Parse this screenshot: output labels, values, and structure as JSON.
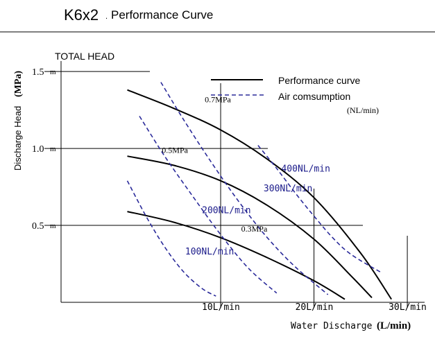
{
  "header": {
    "model": "K6x2",
    "subtitle": "Performance Curve"
  },
  "chart_data": {
    "type": "line",
    "title": "K6x2 Performance Curve",
    "xlabel": "Water Discharge",
    "xlabel_unit": "(L/min)",
    "ylabel": "Discharge Head",
    "ylabel_unit": "(MPa)",
    "y_group_label": "TOTAL HEAD",
    "xlim": [
      -7.1,
      32
    ],
    "ylim": [
      0,
      1.55
    ],
    "x_ticks": [
      {
        "value": 10,
        "label": "10L/min"
      },
      {
        "value": 20,
        "label": "20L/min"
      },
      {
        "value": 30,
        "label": "30L/min"
      }
    ],
    "y_ticks": [
      {
        "value": 0.5,
        "label": "0.5",
        "unit": "m"
      },
      {
        "value": 1.0,
        "label": "1.0",
        "unit": "m"
      },
      {
        "value": 1.5,
        "label": "1.5",
        "unit": "m"
      }
    ],
    "legend": {
      "position": "top-right",
      "items": [
        {
          "label": "Performance curve",
          "style": "solid",
          "color": "#000000"
        },
        {
          "label": "Air comsumption",
          "style": "dashed",
          "color": "#2a2a9a"
        }
      ],
      "note": "(NL/min)"
    },
    "series": [
      {
        "name": "0.7MPa",
        "style": "solid",
        "color": "#000000",
        "x": [
          0,
          5,
          10,
          15,
          20,
          25,
          28.3
        ],
        "y": [
          1.38,
          1.26,
          1.12,
          0.93,
          0.68,
          0.32,
          0.02
        ]
      },
      {
        "name": "0.5MPa",
        "style": "solid",
        "color": "#000000",
        "x": [
          0,
          5,
          10,
          15,
          20,
          24,
          26.2
        ],
        "y": [
          0.95,
          0.89,
          0.79,
          0.63,
          0.41,
          0.17,
          0.03
        ]
      },
      {
        "name": "0.3MPa",
        "style": "solid",
        "color": "#000000",
        "x": [
          0,
          5,
          10,
          15,
          20,
          23.3
        ],
        "y": [
          0.59,
          0.52,
          0.42,
          0.29,
          0.14,
          0.02
        ]
      },
      {
        "name": "100NL/min",
        "style": "dashed",
        "color": "#2a2a9a",
        "x": [
          0,
          2,
          4,
          6,
          8,
          9.5
        ],
        "y": [
          0.79,
          0.56,
          0.36,
          0.2,
          0.09,
          0.04
        ]
      },
      {
        "name": "200NL/min",
        "style": "dashed",
        "color": "#2a2a9a",
        "x": [
          1.3,
          4,
          7,
          10,
          13,
          16
        ],
        "y": [
          1.21,
          0.95,
          0.69,
          0.44,
          0.22,
          0.06
        ]
      },
      {
        "name": "300NL/min",
        "style": "dashed",
        "color": "#2a2a9a",
        "x": [
          3.6,
          6,
          9,
          12,
          15,
          18,
          21.5
        ],
        "y": [
          1.43,
          1.19,
          0.91,
          0.65,
          0.42,
          0.23,
          0.05
        ]
      },
      {
        "name": "400NL/min",
        "style": "dashed",
        "color": "#2a2a9a",
        "x": [
          14,
          16,
          18,
          20,
          22,
          24,
          27.3
        ],
        "y": [
          1.02,
          0.87,
          0.71,
          0.56,
          0.42,
          0.31,
          0.19
        ]
      }
    ],
    "curve_labels": [
      {
        "series": "0.7MPa",
        "text": "0.7MPa",
        "x": 8.3,
        "y": 1.3
      },
      {
        "series": "0.5MPa",
        "text": "0.5MPa",
        "x": 3.7,
        "y": 0.97
      },
      {
        "series": "0.3MPa",
        "text": "0.3MPa",
        "x": 12.2,
        "y": 0.46
      },
      {
        "series": "100NL/min",
        "text": "100NL/min",
        "x": 6.2,
        "y": 0.31
      },
      {
        "series": "200NL/min",
        "text": "200NL/min",
        "x": 8.0,
        "y": 0.58
      },
      {
        "series": "300NL/min",
        "text": "300NL/min",
        "x": 14.6,
        "y": 0.72
      },
      {
        "series": "400NL/min",
        "text": "400NL/min",
        "x": 16.5,
        "y": 0.85
      }
    ],
    "grid": true
  }
}
